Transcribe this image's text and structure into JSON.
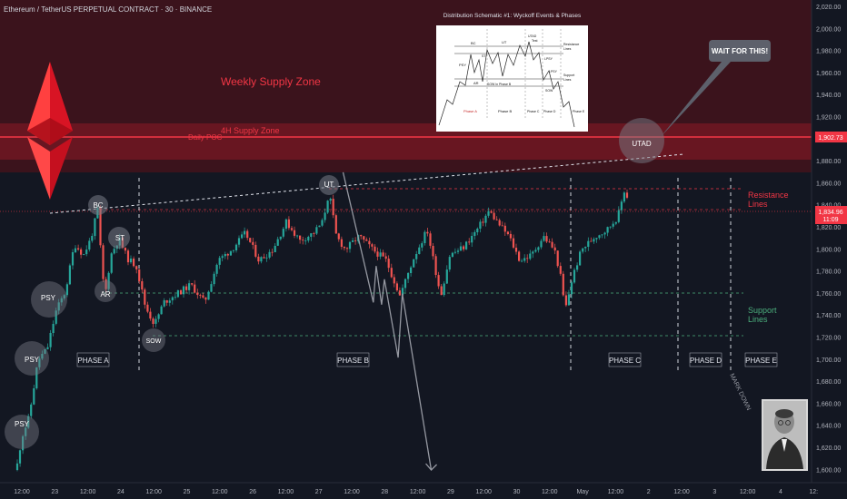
{
  "header": {
    "symbol_title": "Ethereum / TetherUS PERPETUAL CONTRACT · 30 · BINANCE"
  },
  "colors": {
    "background": "#131722",
    "up_candle": "#26a69a",
    "down_candle": "#ef5350",
    "supply_zone": "#b71c2c",
    "red_line": "#f23645",
    "support_green": "#4caf7d",
    "callout_gray": "#787b86"
  },
  "annotations": {
    "weekly_supply_zone": "Weekly Supply Zone",
    "supply_4h": "4H Supply Zone",
    "daily_poc": "Daily POC",
    "resistance_lines": [
      "Resistance",
      "Lines"
    ],
    "support_lines": [
      "Support",
      "Lines"
    ],
    "wait_callout": "WAIT FOR THIS!",
    "mark_down": "MARK DOWN",
    "inset_title": "Distribution Schematic #1: Wyckoff Events & Phases",
    "inset_labels": [
      "BC",
      "UT",
      "UTAD",
      "Test",
      "Resistance",
      "Lines",
      "PSY",
      "ST",
      "AR",
      "LPSY",
      "Support",
      "Lines",
      "SOW in Phase B",
      "SOW",
      "Phase A",
      "Phase B",
      "Phase C",
      "Phase D",
      "Phase E",
      "LPSY"
    ]
  },
  "events": [
    {
      "label": "PSY"
    },
    {
      "label": "PSY"
    },
    {
      "label": "PSY"
    },
    {
      "label": "BC"
    },
    {
      "label": "AR"
    },
    {
      "label": "ST"
    },
    {
      "label": "SOW"
    },
    {
      "label": "UT"
    },
    {
      "label": "UTAD"
    }
  ],
  "phases": [
    "PHASE A",
    "PHASE B",
    "PHASE C",
    "PHASE D",
    "PHASE E"
  ],
  "price_axis": {
    "ticks": [
      "2,020.00",
      "2,000.00",
      "1,980.00",
      "1,960.00",
      "1,940.00",
      "1,920.00",
      "1,900.00",
      "1,880.00",
      "1,860.00",
      "1,840.00",
      "1,820.00",
      "1,800.00",
      "1,780.00",
      "1,760.00",
      "1,740.00",
      "1,720.00",
      "1,700.00",
      "1,680.00",
      "1,660.00",
      "1,640.00",
      "1,620.00",
      "1,600.00"
    ],
    "level_tag": "1,902.73",
    "current_price": "1,834.96",
    "countdown": "11:09"
  },
  "time_axis": {
    "ticks": [
      "12:00",
      "23",
      "12:00",
      "24",
      "12:00",
      "25",
      "12:00",
      "26",
      "12:00",
      "27",
      "12:00",
      "28",
      "12:00",
      "29",
      "12:00",
      "30",
      "12:00",
      "May",
      "12:00",
      "2",
      "12:00",
      "3",
      "12:00",
      "4",
      "12:"
    ]
  },
  "chart_data": {
    "type": "candlestick",
    "title": "Ethereum / TetherUS PERPETUAL CONTRACT · 30 · BINANCE",
    "y_unit": "USDT",
    "ylim": [
      1595,
      2025
    ],
    "x_range": [
      "22 Apr 06:00",
      "4 May 12:00"
    ],
    "weekly_supply_zone": [
      1908,
      2000
    ],
    "supply_4h_zone": [
      1876,
      1914
    ],
    "daily_poc": 1902.73,
    "resistance_lines": [
      1856,
      1835
    ],
    "support_lines": [
      1762,
      1721
    ],
    "last_price": 1834.96,
    "events": [
      {
        "label": "PSY",
        "time": "22 Apr 12:00",
        "price": 1637
      },
      {
        "label": "PSY",
        "time": "22 Apr 22:00",
        "price": 1703
      },
      {
        "label": "PSY",
        "time": "23 Apr 04:00",
        "price": 1756
      },
      {
        "label": "BC",
        "time": "23 Apr 14:00",
        "price": 1840
      },
      {
        "label": "AR",
        "time": "23 Apr 16:00",
        "price": 1760
      },
      {
        "label": "ST",
        "time": "23 Apr 23:00",
        "price": 1807
      },
      {
        "label": "SOW",
        "time": "24 Apr 23:00",
        "price": 1722
      },
      {
        "label": "UT",
        "time": "27 Apr 06:00",
        "price": 1855
      },
      {
        "label": "UTAD",
        "time": "1 May 14:00",
        "price": 1880
      }
    ],
    "projection": [
      {
        "time": "1 May 17:00",
        "price": 1870
      },
      {
        "time": "2 May 15:00",
        "price": 1752
      },
      {
        "time": "2 May 17:00",
        "price": 1785
      },
      {
        "time": "2 May 21:00",
        "price": 1750
      },
      {
        "time": "2 May 23:00",
        "price": 1773
      },
      {
        "time": "3 May 09:00",
        "price": 1702
      },
      {
        "time": "3 May 12:00",
        "price": 1760
      },
      {
        "time": "4 May 09:00",
        "price": 1600
      }
    ]
  }
}
